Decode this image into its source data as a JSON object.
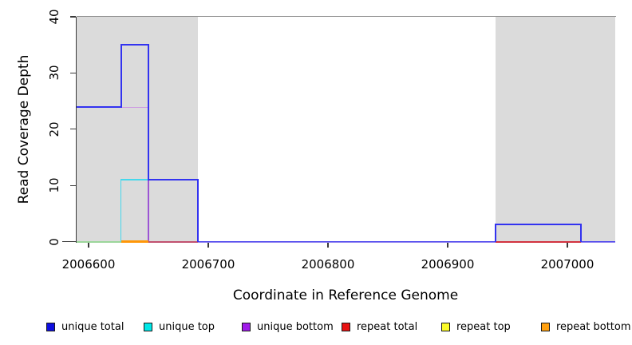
{
  "chart_data": {
    "type": "step-line",
    "title": "",
    "xlabel": "Coordinate in Reference Genome",
    "ylabel": "Read Coverage Depth",
    "xlim": [
      2006590,
      2007040
    ],
    "ylim": [
      0,
      40
    ],
    "xticks": [
      2006600,
      2006700,
      2006800,
      2006900,
      2007000
    ],
    "yticks": [
      0,
      10,
      20,
      30,
      40
    ],
    "grid": false,
    "legend_position": "bottom",
    "shade_color": "#dbdbdb",
    "shaded_regions": [
      {
        "x1": 2006590,
        "x2": 2006691
      },
      {
        "x1": 2006940,
        "x2": 2007040
      }
    ],
    "series": [
      {
        "name": "unique total",
        "color": "#0000EE",
        "steps": [
          [
            2006590,
            24
          ],
          [
            2006627,
            35
          ],
          [
            2006650,
            11
          ],
          [
            2006691,
            0
          ],
          [
            2006940,
            3
          ],
          [
            2007011,
            0
          ]
        ],
        "end": 2007040
      },
      {
        "name": "unique top",
        "color": "#00EEEE",
        "steps": [
          [
            2006590,
            0
          ],
          [
            2006627,
            11
          ],
          [
            2006691,
            0
          ]
        ],
        "end": 2007040
      },
      {
        "name": "unique bottom",
        "color": "#A020F0",
        "steps": [
          [
            2006590,
            24
          ],
          [
            2006650,
            0
          ]
        ],
        "end": 2007040
      },
      {
        "name": "repeat total",
        "color": "#EE0000",
        "steps": [
          [
            2006650,
            0
          ]
        ],
        "end": 2007011
      },
      {
        "name": "repeat top",
        "color": "#FFFF00",
        "steps": [
          [
            2006590,
            0
          ]
        ],
        "end": 2006627
      },
      {
        "name": "repeat bottom",
        "color": "#FFA500",
        "steps": [
          [
            2006627,
            0
          ]
        ],
        "end": 2006650
      }
    ],
    "legend": [
      {
        "label": "unique total",
        "color": "#0F0FE0"
      },
      {
        "label": "unique top",
        "color": "#00E8E8"
      },
      {
        "label": "unique bottom",
        "color": "#A01BEA"
      },
      {
        "label": "repeat total",
        "color": "#E81212"
      },
      {
        "label": "repeat top",
        "color": "#FBFB28"
      },
      {
        "label": "repeat bottom",
        "color": "#FFA010"
      }
    ],
    "render_lines": [
      {
        "t": "h",
        "y": 24,
        "x1": 2006590,
        "x2": 2006650,
        "c": "#CE9BE2",
        "w": 1.4,
        "dy": 0.7
      },
      {
        "t": "v",
        "x": 2006650,
        "y1": 0,
        "y2": 24,
        "c": "#9C55D4",
        "w": 1.4
      },
      {
        "t": "h",
        "y": 0,
        "x1": 2006590,
        "x2": 2006627,
        "c": "#9CD69B",
        "w": 2
      },
      {
        "t": "h",
        "y": 0,
        "x1": 2006627,
        "x2": 2006650,
        "c": "#FF9708",
        "w": 2.2
      },
      {
        "t": "h",
        "y": 0,
        "x1": 2006650,
        "x2": 2006691,
        "c": "#C1516F",
        "w": 2
      },
      {
        "t": "v",
        "x": 2006627,
        "y1": 0,
        "y2": 11,
        "c": "#45D8EC",
        "w": 1.5
      },
      {
        "t": "h",
        "y": 11,
        "x1": 2006627,
        "x2": 2006691,
        "c": "#45D8EC",
        "w": 1.5
      },
      {
        "t": "h",
        "y": 0,
        "x1": 2006691,
        "x2": 2006940,
        "c": "#8E80F0",
        "w": 2,
        "dy": 0.5
      },
      {
        "t": "h",
        "y": 0,
        "x1": 2006691,
        "x2": 2006940,
        "c": "#4A44EE",
        "w": 1.1,
        "dy": -0.4
      },
      {
        "t": "h",
        "y": 0,
        "x1": 2006940,
        "x2": 2007011,
        "c": "#D2323F",
        "w": 2
      },
      {
        "t": "h",
        "y": 0,
        "x1": 2007011,
        "x2": 2007040,
        "c": "#8E80F0",
        "w": 2,
        "dy": 0.5
      },
      {
        "t": "h",
        "y": 0,
        "x1": 2007011,
        "x2": 2007040,
        "c": "#4A44EE",
        "w": 1.1,
        "dy": -0.4
      },
      {
        "t": "h",
        "y": 24,
        "x1": 2006590,
        "x2": 2006627,
        "c": "#3333F0",
        "w": 2
      },
      {
        "t": "v",
        "x": 2006627,
        "y1": 24,
        "y2": 35,
        "c": "#3333F0",
        "w": 2
      },
      {
        "t": "h",
        "y": 35,
        "x1": 2006627,
        "x2": 2006650,
        "c": "#3333F0",
        "w": 2
      },
      {
        "t": "v",
        "x": 2006650,
        "y1": 11,
        "y2": 35,
        "c": "#3333F0",
        "w": 2
      },
      {
        "t": "h",
        "y": 11,
        "x1": 2006650,
        "x2": 2006691,
        "c": "#3333F0",
        "w": 2
      },
      {
        "t": "v",
        "x": 2006691,
        "y1": 0,
        "y2": 11,
        "c": "#3333F0",
        "w": 2
      },
      {
        "t": "v",
        "x": 2006940,
        "y1": 0,
        "y2": 3,
        "c": "#3333F0",
        "w": 2
      },
      {
        "t": "h",
        "y": 3,
        "x1": 2006940,
        "x2": 2007011,
        "c": "#3333F0",
        "w": 2
      },
      {
        "t": "v",
        "x": 2007011,
        "y1": 0,
        "y2": 3,
        "c": "#3333F0",
        "w": 2
      }
    ]
  }
}
